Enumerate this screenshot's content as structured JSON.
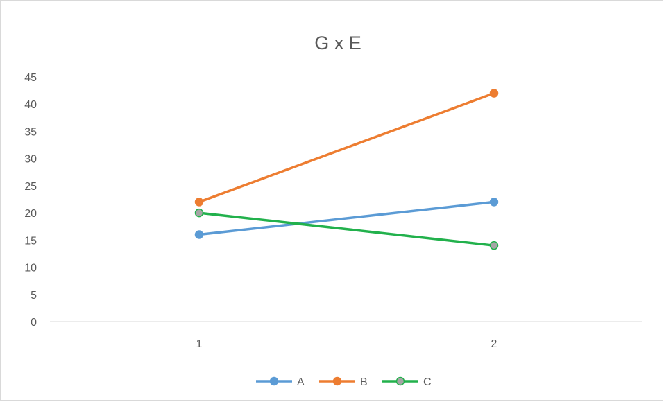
{
  "chart_data": {
    "type": "line",
    "title": "G x E",
    "categories": [
      "1",
      "2"
    ],
    "x": [
      1,
      2
    ],
    "ylim": [
      0,
      45
    ],
    "yticks": [
      0,
      5,
      10,
      15,
      20,
      25,
      30,
      35,
      40,
      45
    ],
    "grid": false,
    "legend_position": "bottom",
    "series": [
      {
        "name": "A",
        "values": [
          16,
          22
        ],
        "color": "#5b9bd5"
      },
      {
        "name": "B",
        "values": [
          22,
          42
        ],
        "color": "#ed7d31"
      },
      {
        "name": "C",
        "values": [
          20,
          14
        ],
        "color": "#22b14c",
        "marker_fill": "#a5a5a5"
      }
    ]
  }
}
